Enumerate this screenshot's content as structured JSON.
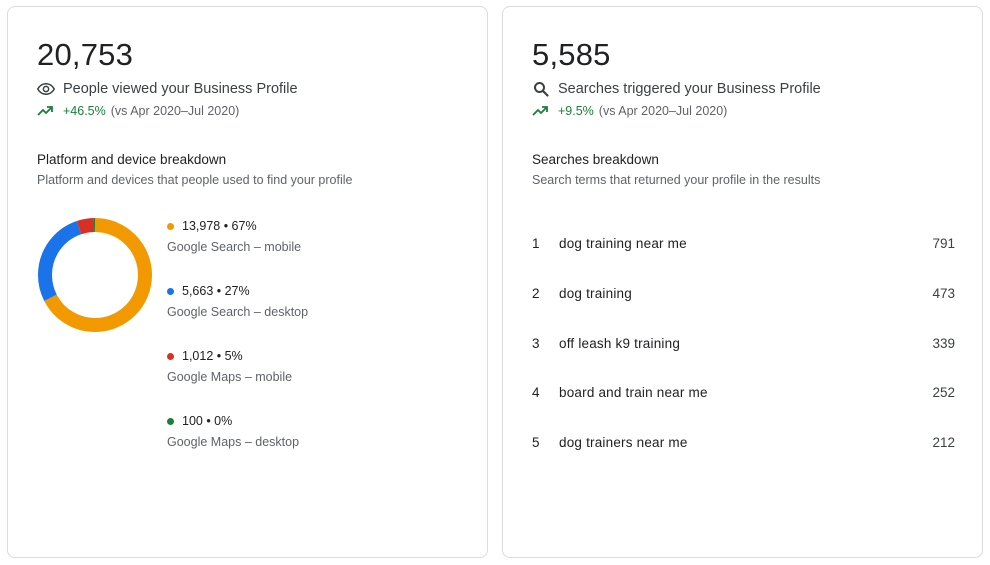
{
  "views_card": {
    "total": "20,753",
    "metric_label": "People viewed your Business Profile",
    "trend_change": "+46.5%",
    "trend_compare": "(vs Apr 2020–Jul 2020)",
    "section_title": "Platform and device breakdown",
    "section_subtitle": "Platform and devices that people used to find your profile",
    "breakdown": [
      {
        "stat": "13,978 • 67%",
        "label": "Google Search – mobile",
        "value": 13978,
        "color": "#f29900"
      },
      {
        "stat": "5,663 • 27%",
        "label": "Google Search – desktop",
        "value": 5663,
        "color": "#1a73e8"
      },
      {
        "stat": "1,012 • 5%",
        "label": "Google Maps – mobile",
        "value": 1012,
        "color": "#d93025"
      },
      {
        "stat": "100 • 0%",
        "label": "Google Maps – desktop",
        "value": 100,
        "color": "#188038"
      }
    ]
  },
  "searches_card": {
    "total": "5,585",
    "metric_label": "Searches triggered your Business Profile",
    "trend_change": "+9.5%",
    "trend_compare": "(vs Apr 2020–Jul 2020)",
    "section_title": "Searches breakdown",
    "section_subtitle": "Search terms that returned your profile in the results",
    "terms": [
      {
        "rank": "1",
        "term": "dog training near me",
        "count": "791"
      },
      {
        "rank": "2",
        "term": "dog training",
        "count": "473"
      },
      {
        "rank": "3",
        "term": "off leash k9 training",
        "count": "339"
      },
      {
        "rank": "4",
        "term": "board and train near me",
        "count": "252"
      },
      {
        "rank": "5",
        "term": "dog trainers near me",
        "count": "212"
      }
    ]
  },
  "icons": {
    "views": "eye-icon",
    "searches": "search-icon",
    "trend": "trending-up-icon"
  }
}
